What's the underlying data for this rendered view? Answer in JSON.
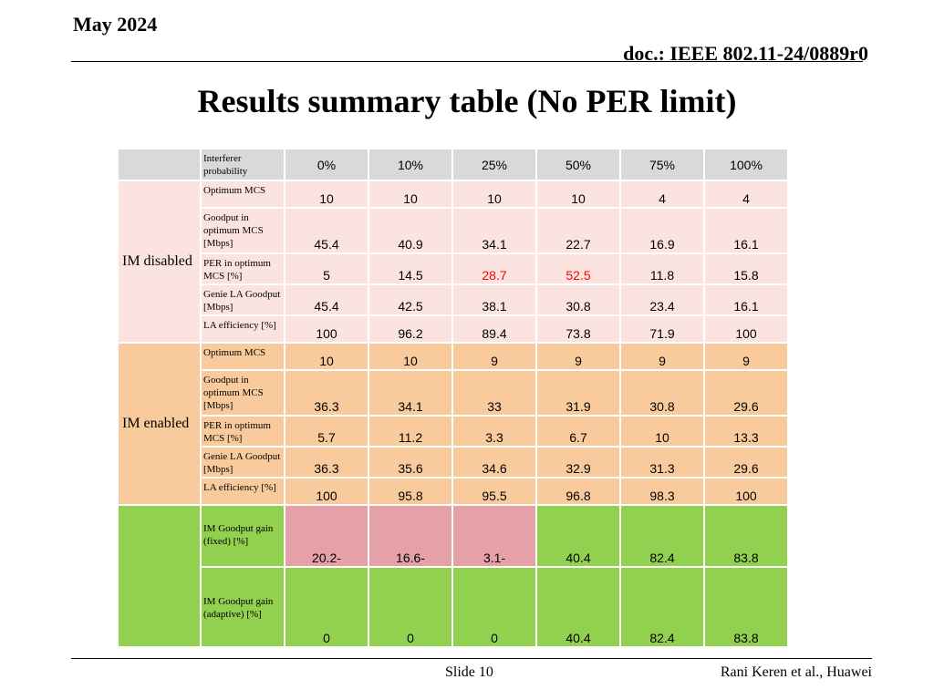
{
  "header": {
    "date": "May 2024",
    "doc": "doc.: IEEE 802.11-24/0889r0"
  },
  "title": "Results summary table (No PER limit)",
  "table": {
    "header_label": "Interferer probability",
    "columns": [
      "0%",
      "10%",
      "25%",
      "50%",
      "75%",
      "100%"
    ],
    "groups": [
      {
        "name": "IM disabled",
        "rows": [
          {
            "label": "Optimum MCS",
            "values": [
              "10",
              "10",
              "10",
              "10",
              "4",
              "4"
            ]
          },
          {
            "label": "Goodput in optimum MCS [Mbps]",
            "values": [
              "45.4",
              "40.9",
              "34.1",
              "22.7",
              "16.9",
              "16.1"
            ]
          },
          {
            "label": "PER in optimum MCS [%]",
            "values": [
              "5",
              "14.5",
              "28.7",
              "52.5",
              "11.8",
              "15.8"
            ]
          },
          {
            "label": "Genie LA Goodput [Mbps]",
            "values": [
              "45.4",
              "42.5",
              "38.1",
              "30.8",
              "23.4",
              "16.1"
            ]
          },
          {
            "label": "LA efficiency [%]",
            "values": [
              "100",
              "96.2",
              "89.4",
              "73.8",
              "71.9",
              "100"
            ]
          }
        ]
      },
      {
        "name": "IM enabled",
        "rows": [
          {
            "label": "Optimum MCS",
            "values": [
              "10",
              "10",
              "9",
              "9",
              "9",
              "9"
            ]
          },
          {
            "label": "Goodput in optimum MCS [Mbps]",
            "values": [
              "36.3",
              "34.1",
              "33",
              "31.9",
              "30.8",
              "29.6"
            ]
          },
          {
            "label": "PER in optimum MCS [%]",
            "values": [
              "5.7",
              "11.2",
              "3.3",
              "6.7",
              "10",
              "13.3"
            ]
          },
          {
            "label": "Genie LA Goodput [Mbps]",
            "values": [
              "36.3",
              "35.6",
              "34.6",
              "32.9",
              "31.3",
              "29.6"
            ]
          },
          {
            "label": "LA efficiency [%]",
            "values": [
              "100",
              "95.8",
              "95.5",
              "96.8",
              "98.3",
              "100"
            ]
          }
        ]
      },
      {
        "name": "",
        "rows": [
          {
            "label": "IM Goodput gain (fixed) [%]",
            "values": [
              "20.2-",
              "16.6-",
              "3.1-",
              "40.4",
              "82.4",
              "83.8"
            ]
          },
          {
            "label": "IM Goodput gain (adaptive) [%]",
            "values": [
              "0",
              "0",
              "0",
              "40.4",
              "82.4",
              "83.8"
            ]
          }
        ]
      }
    ],
    "colors": {
      "header": "#d9d9d9",
      "im_disabled": "#fbe4e0",
      "im_enabled": "#f9cb9c",
      "gain_positive": "#92d050",
      "gain_negative": "#e6a0a8",
      "highlight_text": "#ff0000"
    }
  },
  "footer": {
    "slide": "Slide 10",
    "author": "Rani Keren et al., Huawei"
  }
}
